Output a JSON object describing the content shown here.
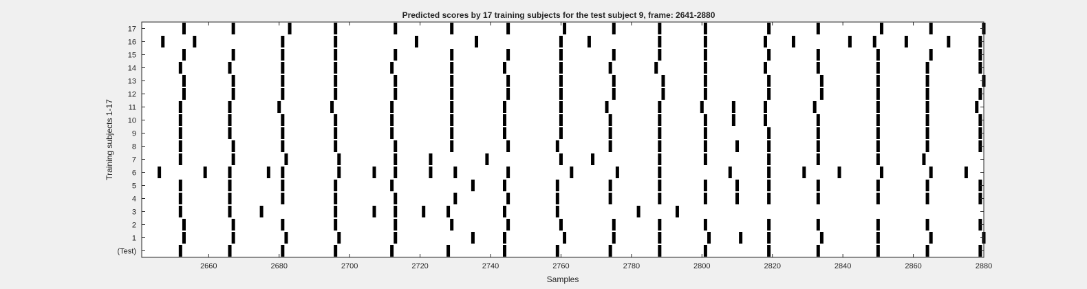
{
  "chart_data": {
    "type": "raster",
    "title": "Predicted scores by 17 training subjects for the test subject 9, frame: 2641-2880",
    "xlabel": "Samples",
    "ylabel": "Training subjects 1-17",
    "xlim": [
      2641,
      2880
    ],
    "xticks": [
      2660,
      2680,
      2700,
      2720,
      2740,
      2760,
      2780,
      2800,
      2820,
      2840,
      2860,
      2880
    ],
    "ytick_labels": [
      "(Test)",
      "1",
      "2",
      "3",
      "4",
      "5",
      "6",
      "7",
      "8",
      "9",
      "10",
      "11",
      "12",
      "13",
      "14",
      "15",
      "16",
      "17"
    ],
    "grid": false,
    "mark_color": "#000000",
    "rows": [
      {
        "label": "(Test)",
        "events": [
          2652,
          2666,
          2681,
          2696,
          2712,
          2728,
          2744,
          2759,
          2774,
          2788,
          2801,
          2819,
          2833,
          2850,
          2864,
          2879
        ]
      },
      {
        "label": "1",
        "events": [
          2653,
          2667,
          2682,
          2697,
          2713,
          2735,
          2744,
          2761,
          2775,
          2788,
          2802,
          2811,
          2819,
          2834,
          2850,
          2865,
          2880
        ]
      },
      {
        "label": "2",
        "events": [
          2653,
          2667,
          2681,
          2696,
          2713,
          2729,
          2745,
          2760,
          2775,
          2788,
          2801,
          2819,
          2833,
          2850,
          2864,
          2879
        ]
      },
      {
        "label": "3",
        "events": [
          2652,
          2666,
          2675,
          2696,
          2707,
          2713,
          2721,
          2728,
          2744,
          2759,
          2782,
          2793
        ]
      },
      {
        "label": "4",
        "events": [
          2652,
          2666,
          2681,
          2696,
          2713,
          2730,
          2745,
          2759,
          2774,
          2788,
          2801,
          2810,
          2819,
          2833,
          2850,
          2864,
          2879
        ]
      },
      {
        "label": "5",
        "events": [
          2652,
          2666,
          2681,
          2696,
          2712,
          2735,
          2744,
          2759,
          2774,
          2788,
          2801,
          2810,
          2819,
          2833,
          2850,
          2864,
          2879
        ]
      },
      {
        "label": "6",
        "events": [
          2646,
          2659,
          2666,
          2677,
          2681,
          2697,
          2707,
          2713,
          2723,
          2730,
          2745,
          2763,
          2776,
          2788,
          2808,
          2819,
          2829,
          2839,
          2851,
          2865,
          2875
        ]
      },
      {
        "label": "7",
        "events": [
          2652,
          2667,
          2682,
          2697,
          2713,
          2723,
          2739,
          2760,
          2769,
          2788,
          2801,
          2819,
          2833,
          2850,
          2863
        ]
      },
      {
        "label": "8",
        "events": [
          2652,
          2667,
          2681,
          2696,
          2713,
          2729,
          2745,
          2759,
          2774,
          2788,
          2801,
          2810,
          2819,
          2833,
          2850,
          2864,
          2879
        ]
      },
      {
        "label": "9",
        "events": [
          2652,
          2666,
          2681,
          2696,
          2712,
          2729,
          2744,
          2760,
          2774,
          2788,
          2801,
          2819,
          2833,
          2850,
          2864,
          2879
        ]
      },
      {
        "label": "10",
        "events": [
          2652,
          2666,
          2681,
          2696,
          2712,
          2729,
          2744,
          2760,
          2774,
          2788,
          2801,
          2809,
          2818,
          2833,
          2850,
          2864,
          2879
        ]
      },
      {
        "label": "11",
        "events": [
          2652,
          2666,
          2680,
          2695,
          2712,
          2729,
          2744,
          2760,
          2773,
          2788,
          2800,
          2809,
          2818,
          2832,
          2850,
          2864,
          2878
        ]
      },
      {
        "label": "12",
        "events": [
          2653,
          2667,
          2681,
          2696,
          2713,
          2729,
          2745,
          2760,
          2775,
          2789,
          2801,
          2819,
          2834,
          2850,
          2864,
          2879
        ]
      },
      {
        "label": "13",
        "events": [
          2653,
          2667,
          2681,
          2696,
          2713,
          2729,
          2745,
          2760,
          2775,
          2789,
          2801,
          2819,
          2834,
          2850,
          2864,
          2880
        ]
      },
      {
        "label": "14",
        "events": [
          2652,
          2666,
          2681,
          2696,
          2712,
          2729,
          2744,
          2760,
          2774,
          2787,
          2801,
          2818,
          2833,
          2850,
          2864,
          2879
        ]
      },
      {
        "label": "15",
        "events": [
          2653,
          2667,
          2681,
          2696,
          2713,
          2729,
          2745,
          2760,
          2775,
          2788,
          2801,
          2819,
          2833,
          2850,
          2865,
          2879
        ]
      },
      {
        "label": "16",
        "events": [
          2647,
          2656,
          2681,
          2696,
          2719,
          2736,
          2760,
          2768,
          2788,
          2801,
          2818,
          2826,
          2842,
          2849,
          2858,
          2870,
          2879
        ]
      },
      {
        "label": "17",
        "events": [
          2653,
          2667,
          2683,
          2696,
          2713,
          2729,
          2745,
          2761,
          2775,
          2788,
          2801,
          2819,
          2833,
          2851,
          2865,
          2880
        ]
      }
    ]
  }
}
